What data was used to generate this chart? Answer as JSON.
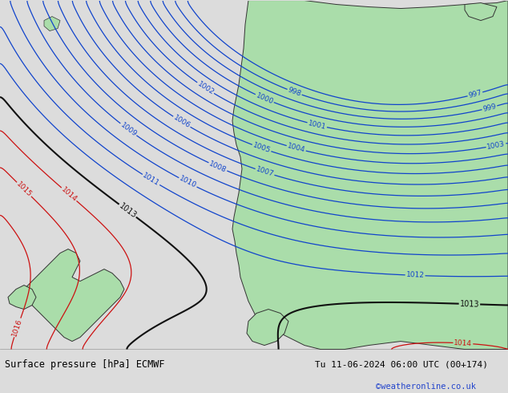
{
  "title_left": "Surface pressure [hPa] ECMWF",
  "title_right": "Tu 11-06-2024 06:00 UTC (00+174)",
  "credit": "©weatheronline.co.uk",
  "bg_color": "#dcdcdc",
  "land_color": "#aaddaa",
  "land_edge_color": "#333333",
  "blue_color": "#1144cc",
  "red_color": "#cc1111",
  "black_color": "#111111",
  "footer_bg": "#d0d0d0",
  "blue_levels": [
    997,
    998,
    999,
    1000,
    1001,
    1002,
    1003,
    1004,
    1005,
    1006,
    1007,
    1008,
    1009,
    1010,
    1011,
    1012
  ],
  "black_levels": [
    1013
  ],
  "red_levels": [
    1014,
    1015,
    1016
  ],
  "label_fontsize": 6.5
}
